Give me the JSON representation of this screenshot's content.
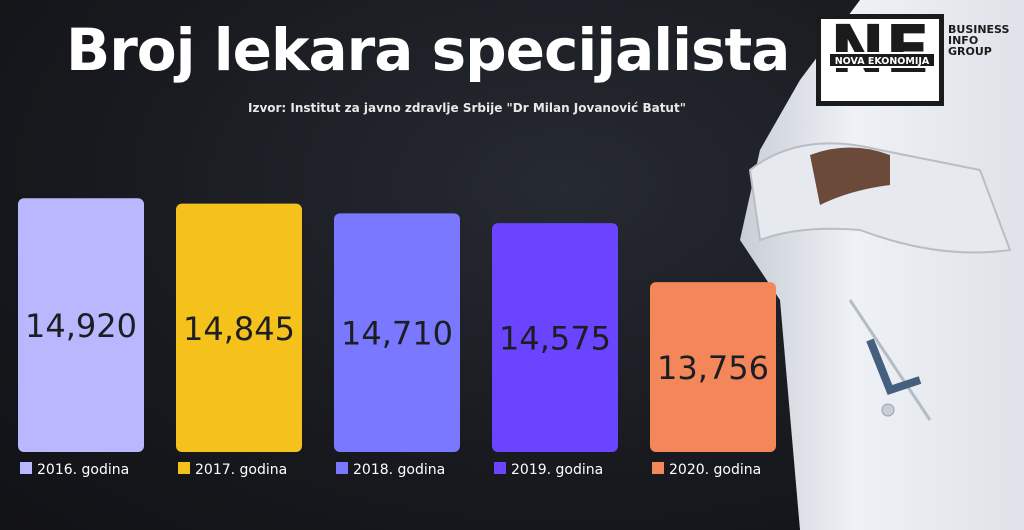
{
  "header": {
    "title": "Broj lekara specijalista",
    "source": "Izvor: Institut za javno zdravlje Srbije \"Dr Milan Jovanović Batut\""
  },
  "logo": {
    "mark": "NE",
    "band": "NOVA EKONOMIJA",
    "sub": [
      "BUSINESS",
      "INFO",
      "GROUP"
    ]
  },
  "colors": {
    "background": "#16181d",
    "series": [
      "#b9b8ff",
      "#f5c21b",
      "#7978ff",
      "#6a44ff",
      "#f4875a"
    ]
  },
  "chart_data": {
    "type": "bar",
    "title": "Broj lekara specijalista",
    "categories": [
      "2016. godina",
      "2017. godina",
      "2018. godina",
      "2019. godina",
      "2020. godina"
    ],
    "values": [
      14920,
      14845,
      14710,
      14575,
      13756
    ],
    "value_labels": [
      "14,920",
      "14,845",
      "14,710",
      "14,575",
      "13,756"
    ],
    "colors": [
      "#b9b8ff",
      "#f5c21b",
      "#7978ff",
      "#6a44ff",
      "#f4875a"
    ],
    "grid": false,
    "legend_position": "bottom"
  }
}
